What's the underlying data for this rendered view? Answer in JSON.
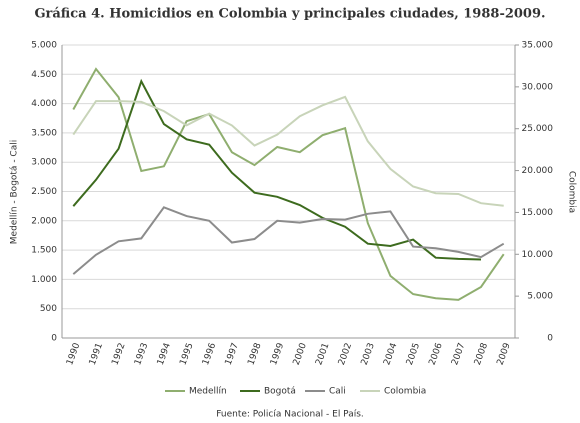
{
  "chart_data": {
    "type": "line",
    "title": "Gráfica 4. Homicidios en Colombia y principales ciudades, 1988-2009.",
    "y_label": "Medellín - Bogotá - Cali",
    "y2_label": "Colombia",
    "source": "Fuente: Policía Nacional - El País.",
    "categories": [
      "1990",
      "1991",
      "1992",
      "1993",
      "1994",
      "1995",
      "1996",
      "1997",
      "1998",
      "1999",
      "2000",
      "2001",
      "2002",
      "2003",
      "2004",
      "2005",
      "2006",
      "2007",
      "2008",
      "2009"
    ],
    "series": [
      {
        "name": "Medellín",
        "color": "#8fae6f",
        "values": [
          3900,
          4590,
          4110,
          2850,
          2930,
          3700,
          3820,
          3170,
          2950,
          3260,
          3170,
          3460,
          3580,
          1960,
          1060,
          750,
          680,
          650,
          870,
          1430
        ]
      },
      {
        "name": "Bogotá",
        "color": "#3d6b1e",
        "values": [
          2250,
          2700,
          3230,
          4380,
          3650,
          3390,
          3300,
          2820,
          2480,
          2410,
          2270,
          2050,
          1900,
          1610,
          1570,
          1680,
          1370,
          1350,
          1340,
          null
        ]
      },
      {
        "name": "Cali",
        "color": "#8c8c8c",
        "values": [
          1090,
          1420,
          1650,
          1700,
          2230,
          2080,
          2000,
          1630,
          1690,
          2000,
          1970,
          2030,
          2020,
          2120,
          2160,
          1560,
          1530,
          1470,
          1380,
          1610
        ]
      },
      {
        "name": "Colombia",
        "color": "#c8d4b9",
        "axis": "y2",
        "values": [
          24300,
          28300,
          28300,
          28200,
          27100,
          25400,
          26800,
          25400,
          23000,
          24300,
          26500,
          27800,
          28800,
          23500,
          20200,
          18100,
          17300,
          17200,
          16100,
          15800
        ]
      }
    ],
    "ylim": [
      0,
      5000
    ],
    "yticks": [
      0,
      {
        "value": 500,
        "label": "500"
      },
      {
        "value": 1000,
        "label": "1.000"
      },
      {
        "value": 1500,
        "label": "1.500"
      },
      {
        "value": 2000,
        "label": "2.000"
      },
      {
        "value": 2500,
        "label": "2.500"
      },
      {
        "value": 3000,
        "label": "3.000"
      },
      {
        "value": 3500,
        "label": "3.500"
      },
      {
        "value": 4000,
        "label": "4.000"
      },
      {
        "value": 4500,
        "label": "4.500"
      },
      {
        "value": 5000,
        "label": "5.000"
      }
    ],
    "y2lim": [
      0,
      35000
    ],
    "y2ticks": [
      0,
      {
        "value": 5000,
        "label": "5.000"
      },
      {
        "value": 10000,
        "label": "10.000"
      },
      {
        "value": 15000,
        "label": "15.000"
      },
      {
        "value": 20000,
        "label": "20.000"
      },
      {
        "value": 25000,
        "label": "25.000"
      },
      {
        "value": 30000,
        "label": "30.000"
      },
      {
        "value": 35000,
        "label": "35.000"
      }
    ],
    "grid": true,
    "legend": "bottom"
  }
}
